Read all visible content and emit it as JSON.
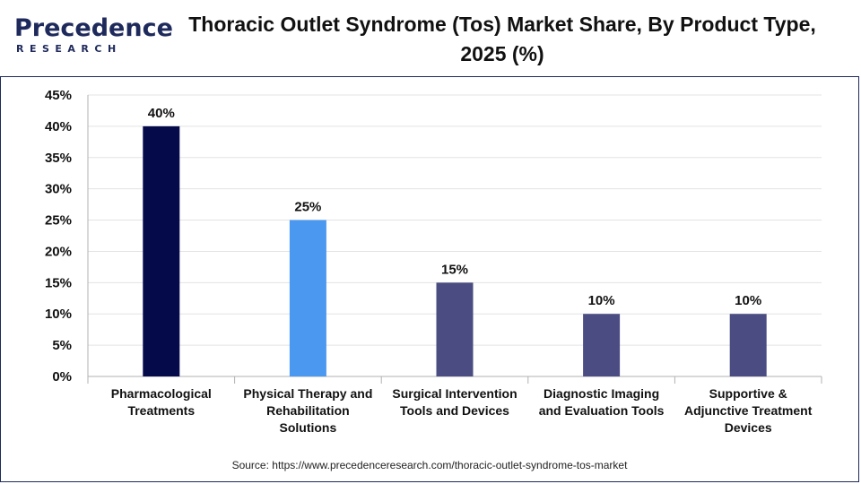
{
  "brand": {
    "name": "Precedence",
    "sub": "RESEARCH"
  },
  "title": "Thoracic Outlet Syndrome (Tos) Market Share, By Product Type, 2025 (%)",
  "source": "Source: https://www.precedenceresearch.com/thoracic-outlet-syndrome-tos-market",
  "chart_data": {
    "type": "bar",
    "categories": [
      "Pharmacological Treatments",
      "Physical Therapy and Rehabilitation Solutions",
      "Surgical Intervention Tools and Devices",
      "Diagnostic Imaging and Evaluation Tools",
      "Supportive & Adjunctive Treatment Devices"
    ],
    "category_lines": [
      [
        "Pharmacological",
        "Treatments"
      ],
      [
        "Physical Therapy and",
        "Rehabilitation",
        "Solutions"
      ],
      [
        "Surgical Intervention",
        "Tools and Devices"
      ],
      [
        "Diagnostic Imaging",
        "and Evaluation Tools"
      ],
      [
        "Supportive &",
        "Adjunctive Treatment",
        "Devices"
      ]
    ],
    "values": [
      40,
      25,
      15,
      10,
      10
    ],
    "data_labels": [
      "40%",
      "25%",
      "15%",
      "10%",
      "10%"
    ],
    "colors": [
      "#050a4a",
      "#4a98f0",
      "#4a4c82",
      "#4a4c82",
      "#4a4c82"
    ],
    "ylim": [
      0,
      45
    ],
    "yticks": [
      0,
      5,
      10,
      15,
      20,
      25,
      30,
      35,
      40,
      45
    ],
    "ytick_labels": [
      "0%",
      "5%",
      "10%",
      "15%",
      "20%",
      "25%",
      "30%",
      "35%",
      "40%",
      "45%"
    ],
    "grid": true
  }
}
